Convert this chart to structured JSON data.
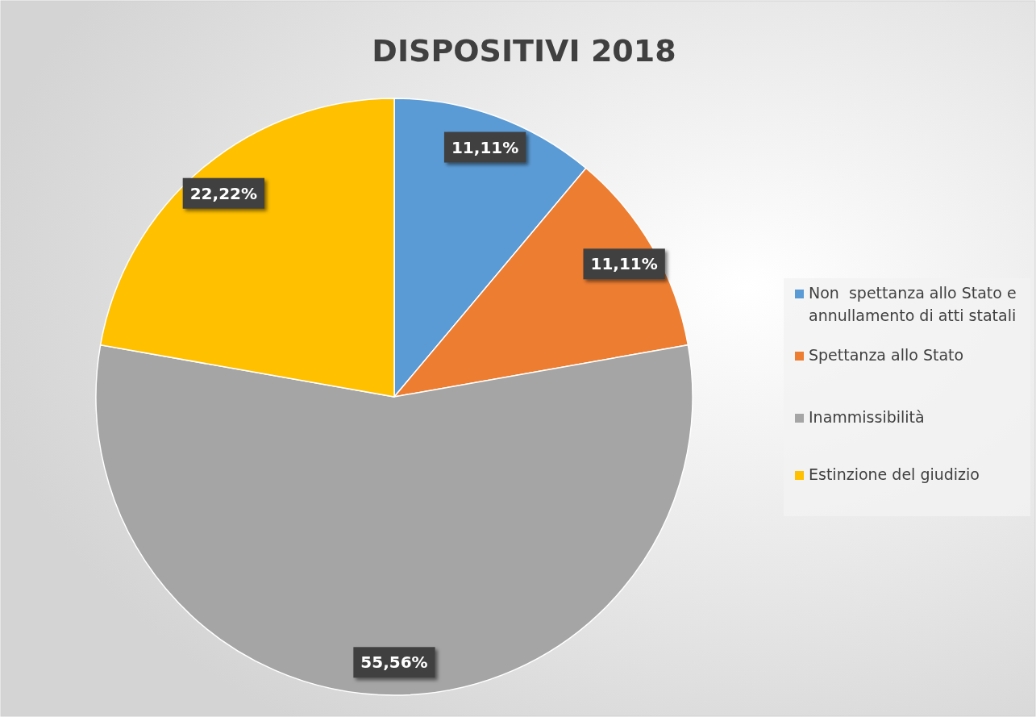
{
  "chart_data": {
    "type": "pie",
    "title": "DISPOSITIVI 2018",
    "categories": [
      "Non  spettanza allo Stato e annullamento di atti statali",
      "Spettanza allo Stato",
      "Inammissibilità",
      "Estinzione del giudizio"
    ],
    "values": [
      11.11,
      11.11,
      55.56,
      22.22
    ],
    "value_labels": [
      "11,11%",
      "11,11%",
      "55,56%",
      "22,22%"
    ],
    "colors": [
      "#5b9bd5",
      "#ed7d31",
      "#a5a5a5",
      "#ffc000"
    ],
    "legend": "right"
  }
}
